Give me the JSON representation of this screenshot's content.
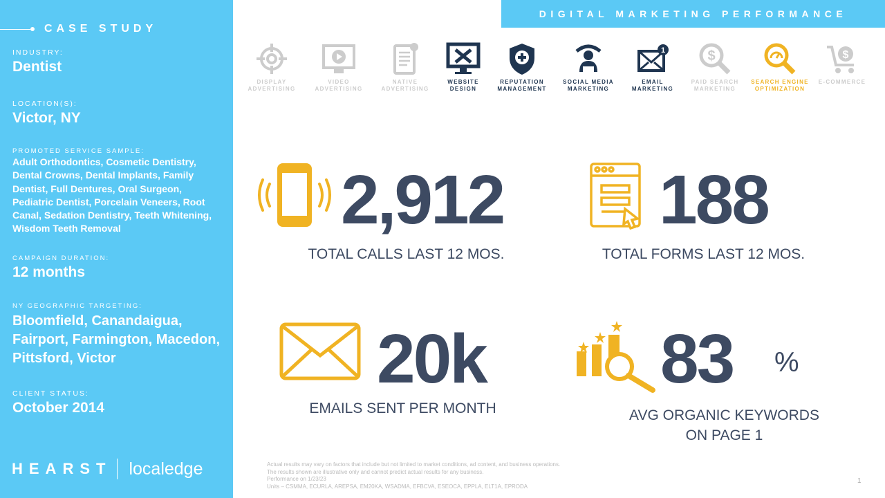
{
  "sidebar": {
    "heading": "CASE STUDY",
    "industry": {
      "label": "INDUSTRY:",
      "value": "Dentist"
    },
    "location": {
      "label": "LOCATION(S):",
      "value": "Victor, NY"
    },
    "services": {
      "label": "PROMOTED SERVICE SAMPLE:",
      "value": "Adult Orthodontics, Cosmetic Dentistry, Dental Crowns, Dental Implants, Family Dentist, Full Dentures, Oral Surgeon, Pediatric Dentist, Porcelain Veneers, Root Canal, Sedation Dentistry, Teeth Whitening, Wisdom Teeth Removal"
    },
    "duration": {
      "label": "CAMPAIGN DURATION:",
      "value": "12 months"
    },
    "targeting": {
      "label": "NY GEOGRAPHIC TARGETING:",
      "value": "Bloomfield, Canandaigua, Fairport, Farmington, Macedon, Pittsford, Victor"
    },
    "status": {
      "label": "CLIENT STATUS:",
      "value": "October 2014"
    },
    "logo": {
      "hearst": "HEARST",
      "localedge": "localedge"
    }
  },
  "header": {
    "title": "DIGITAL MARKETING PERFORMANCE"
  },
  "services": [
    {
      "l1": "DISPLAY",
      "l2": "ADVERTISING",
      "state": "off",
      "icon": "target-icon"
    },
    {
      "l1": "VIDEO",
      "l2": "ADVERTISING",
      "state": "off",
      "icon": "video-icon"
    },
    {
      "l1": "NATIVE",
      "l2": "ADVERTISING",
      "state": "off",
      "icon": "tablet-icon"
    },
    {
      "l1": "WEBSITE",
      "l2": "DESIGN",
      "state": "on",
      "icon": "monitor-tools-icon"
    },
    {
      "l1": "REPUTATION",
      "l2": "MANAGEMENT",
      "state": "on",
      "icon": "shield-icon"
    },
    {
      "l1": "SOCIAL MEDIA",
      "l2": "MARKETING",
      "state": "on",
      "icon": "person-laptop-icon"
    },
    {
      "l1": "EMAIL",
      "l2": "MARKETING",
      "state": "on",
      "icon": "envelope-icon"
    },
    {
      "l1": "PAID SEARCH",
      "l2": "MARKETING",
      "state": "off",
      "icon": "dollar-search-icon"
    },
    {
      "l1": "SEARCH ENGINE",
      "l2": "OPTIMIZATION",
      "state": "hi",
      "icon": "gauge-search-icon"
    },
    {
      "l1": "E-COMMERCE",
      "l2": "",
      "state": "off",
      "icon": "cart-icon"
    }
  ],
  "stats": {
    "calls": {
      "value": "2,912",
      "label": "TOTAL CALLS LAST 12 MOS."
    },
    "forms": {
      "value": "188",
      "label": "TOTAL FORMS LAST 12 MOS."
    },
    "emails": {
      "value": "20k",
      "label": "EMAILS SENT PER MONTH"
    },
    "keywords": {
      "value": "83",
      "unit": "%",
      "label1": "AVG ORGANIC KEYWORDS",
      "label2": "ON PAGE 1"
    }
  },
  "disclaimer": [
    "Actual results may vary on factors that include but not limited to market conditions, ad content, and business operations.",
    "The results shown are illustrative only and cannot predict actual results for any business.",
    "Performance on 1/23/23",
    "Units – CSMMA, ECURLA, AREPSA, EM20KA, WSADMA, EFBCVA, ESEOCA, EPPLA, ELT1A, EPRODA"
  ],
  "page_number": "1",
  "colors": {
    "panel": "#5BC9F5",
    "navy": "#3D4A62",
    "accent": "#F0B323"
  }
}
